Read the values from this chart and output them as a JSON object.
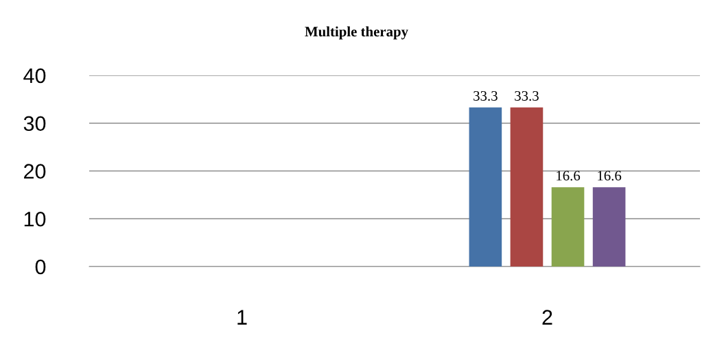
{
  "chart_data": {
    "type": "bar",
    "title": "Multiple therapy",
    "categories": [
      "1",
      "2"
    ],
    "series": [
      {
        "color": "#4572a7",
        "values": [
          null,
          33.3
        ]
      },
      {
        "color": "#aa4643",
        "values": [
          null,
          33.3
        ]
      },
      {
        "color": "#89a54e",
        "values": [
          null,
          16.6
        ]
      },
      {
        "color": "#71588f",
        "values": [
          null,
          16.6
        ]
      }
    ],
    "ylim": [
      0,
      40
    ],
    "yticks": [
      0,
      10,
      20,
      30,
      40
    ],
    "grid": "y",
    "data_labels": true
  }
}
